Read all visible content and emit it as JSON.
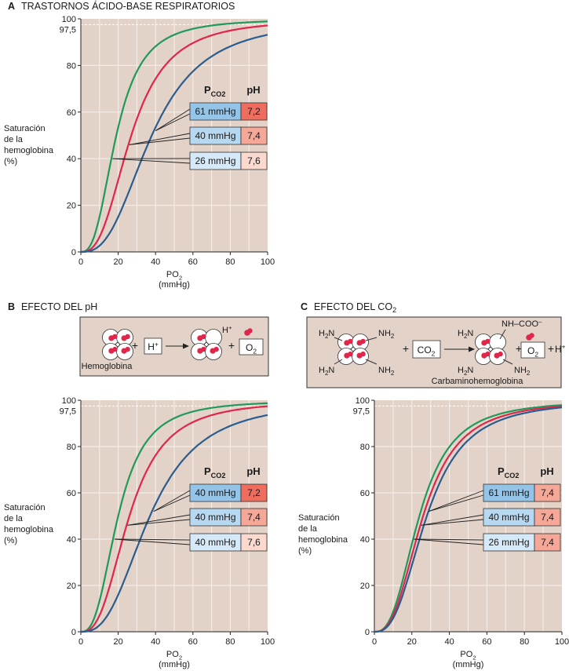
{
  "colors": {
    "plot_bg": "#e3d2c8",
    "diagram_bg": "#e3d2c8",
    "grid": "#f3ece7",
    "green": "#1f9a5a",
    "red": "#e0264a",
    "blue": "#2a5d8f",
    "pco2_dark": "#94c4e8",
    "pco2_mid": "#b7d8f1",
    "pco2_light": "#d6e9f8",
    "ph_dark": "#ee6d5e",
    "ph_mid": "#f5a897",
    "ph_light": "#fbd9cf",
    "heme": "#e0264a"
  },
  "panels": [
    {
      "letter": "A",
      "title": "TRASTORNOS ÁCIDO-BASE RESPIRATORIOS",
      "legend_header_pco2": "P",
      "legend_header_pco2_sub": "CO2",
      "legend_header_ph": "pH",
      "legend_rows": [
        {
          "pco2": "61 mmHg",
          "ph": "7,2"
        },
        {
          "pco2": "40 mmHg",
          "ph": "7,4"
        },
        {
          "pco2": "26 mmHg",
          "ph": "7,6"
        }
      ]
    },
    {
      "letter": "B",
      "title": "EFECTO DEL pH",
      "legend_header_pco2": "P",
      "legend_header_pco2_sub": "CO2",
      "legend_header_ph": "pH",
      "legend_rows": [
        {
          "pco2": "40 mmHg",
          "ph": "7,2"
        },
        {
          "pco2": "40 mmHg",
          "ph": "7,4"
        },
        {
          "pco2": "40 mmHg",
          "ph": "7,6"
        }
      ]
    },
    {
      "letter": "C",
      "title": "EFECTO DEL CO",
      "title_sub": "2",
      "legend_header_pco2": "P",
      "legend_header_pco2_sub": "CO2",
      "legend_header_ph": "pH",
      "legend_rows": [
        {
          "pco2": "61 mmHg",
          "ph": "7,4"
        },
        {
          "pco2": "40 mmHg",
          "ph": "7,4"
        },
        {
          "pco2": "26 mmHg",
          "ph": "7,4"
        }
      ]
    }
  ],
  "diagram_b": {
    "plus1": "+",
    "h_ion": "H",
    "h_ion_sup": "+",
    "plus2": "+",
    "o2": "O",
    "o2_sub": "2",
    "bound_h": "H",
    "bound_h_sup": "+",
    "hemoglobina_label": "Hemoglobina"
  },
  "diagram_c": {
    "h2n_tl": "H2N",
    "nh2_tr": "NH2",
    "h2n_bl": "H2N",
    "nh2_br": "NH2",
    "plus1": "+",
    "co2": "CO",
    "co2_sub": "2",
    "h2n_tl2": "H2N",
    "nh_coo": "NH–COO",
    "nh_coo_sup": "–",
    "h2n_bl2": "H2N",
    "nh2_br2": "NH2",
    "plus2": "+",
    "o2": "O",
    "o2_sub": "2",
    "plus3": "+",
    "h_ion": "H",
    "h_ion_sup": "+",
    "carbamino_label": "Carbaminohemoglobina"
  },
  "chart_data": [
    {
      "type": "line",
      "panel": "A",
      "title": "TRASTORNOS ÁCIDO-BASE RESPIRATORIOS",
      "xlabel": "PO2 (mmHg)",
      "xlabel_main": "PO",
      "xlabel_sub": "2",
      "xlabel_unit": "(mmHg)",
      "ylabel_lines": [
        "Saturación",
        "de la",
        "hemoglobina",
        "(%)"
      ],
      "xlim": [
        0,
        100
      ],
      "ylim": [
        0,
        100
      ],
      "xticks": [
        "0",
        "20",
        "40",
        "60",
        "80",
        "100"
      ],
      "yticks": [
        "0",
        "20",
        "40",
        "60",
        "80",
        "100"
      ],
      "ref_line": {
        "y": 97.5,
        "label": "97,5"
      },
      "grid": true,
      "series": [
        {
          "color": "green",
          "p50": 19,
          "n": 2.7,
          "points": [
            [
              0,
              0
            ],
            [
              10,
              24
            ],
            [
              20,
              56
            ],
            [
              30,
              79
            ],
            [
              40,
              90
            ],
            [
              60,
              97
            ],
            [
              80,
              99
            ],
            [
              100,
              99.5
            ]
          ]
        },
        {
          "color": "red",
          "p50": 27,
          "n": 2.7,
          "points": [
            [
              0,
              0
            ],
            [
              10,
              6
            ],
            [
              20,
              31
            ],
            [
              30,
              57
            ],
            [
              40,
              74
            ],
            [
              60,
              90
            ],
            [
              80,
              96
            ],
            [
              100,
              98
            ]
          ]
        },
        {
          "color": "blue",
          "p50": 38,
          "n": 2.7,
          "points": [
            [
              0,
              0
            ],
            [
              10,
              3
            ],
            [
              20,
              12
            ],
            [
              30,
              30
            ],
            [
              40,
              55
            ],
            [
              60,
              77
            ],
            [
              80,
              88
            ],
            [
              100,
              93
            ]
          ]
        }
      ]
    },
    {
      "type": "line",
      "panel": "B",
      "title": "EFECTO DEL pH",
      "xlabel": "PO2 (mmHg)",
      "xlabel_main": "PO",
      "xlabel_sub": "2",
      "xlabel_unit": "(mmHg)",
      "ylabel_lines": [
        "Saturación",
        "de la",
        "hemoglobina",
        "(%)"
      ],
      "xlim": [
        0,
        100
      ],
      "ylim": [
        0,
        100
      ],
      "xticks": [
        "0",
        "20",
        "40",
        "60",
        "80",
        "100"
      ],
      "yticks": [
        "0",
        "20",
        "40",
        "60",
        "80",
        "100"
      ],
      "ref_line": {
        "y": 97.5,
        "label": "97,5"
      },
      "grid": true,
      "series": [
        {
          "color": "green",
          "p50": 20,
          "n": 2.7,
          "points": [
            [
              0,
              0
            ],
            [
              10,
              14
            ],
            [
              20,
              50
            ],
            [
              30,
              75
            ],
            [
              40,
              88
            ],
            [
              60,
              96
            ],
            [
              80,
              98.5
            ],
            [
              100,
              99.5
            ]
          ]
        },
        {
          "color": "red",
          "p50": 26,
          "n": 2.7,
          "points": [
            [
              0,
              0
            ],
            [
              10,
              7
            ],
            [
              20,
              32
            ],
            [
              30,
              58
            ],
            [
              40,
              76
            ],
            [
              60,
              91
            ],
            [
              80,
              96
            ],
            [
              100,
              98
            ]
          ]
        },
        {
          "color": "blue",
          "p50": 37,
          "n": 2.7,
          "points": [
            [
              0,
              0
            ],
            [
              10,
              3
            ],
            [
              20,
              13
            ],
            [
              30,
              33
            ],
            [
              40,
              56
            ],
            [
              60,
              79
            ],
            [
              80,
              89
            ],
            [
              100,
              93
            ]
          ]
        }
      ]
    },
    {
      "type": "line",
      "panel": "C",
      "title": "EFECTO DEL CO2",
      "xlabel": "PO2 (mmHg)",
      "xlabel_main": "PO",
      "xlabel_sub": "2",
      "xlabel_unit": "(mmHg)",
      "ylabel_lines": [
        "Saturación",
        "de la",
        "hemoglobina",
        "(%)"
      ],
      "xlim": [
        0,
        100
      ],
      "ylim": [
        0,
        100
      ],
      "xticks": [
        "0",
        "20",
        "40",
        "60",
        "80",
        "100"
      ],
      "yticks": [
        "0",
        "20",
        "40",
        "60",
        "80",
        "100"
      ],
      "ref_line": {
        "y": 97.5,
        "label": "97,5"
      },
      "grid": true,
      "series": [
        {
          "color": "green",
          "p50": 24,
          "n": 2.7,
          "points": [
            [
              0,
              0
            ],
            [
              10,
              8
            ],
            [
              20,
              38
            ],
            [
              30,
              65
            ],
            [
              40,
              81
            ],
            [
              60,
              94
            ],
            [
              80,
              97
            ],
            [
              100,
              98
            ]
          ]
        },
        {
          "color": "red",
          "p50": 26,
          "n": 2.7,
          "points": [
            [
              0,
              0
            ],
            [
              10,
              7
            ],
            [
              20,
              33
            ],
            [
              30,
              60
            ],
            [
              40,
              78
            ],
            [
              60,
              92
            ],
            [
              80,
              96.5
            ],
            [
              100,
              97.5
            ]
          ]
        },
        {
          "color": "blue",
          "p50": 28,
          "n": 2.7,
          "points": [
            [
              0,
              0
            ],
            [
              10,
              5
            ],
            [
              20,
              28
            ],
            [
              30,
              55
            ],
            [
              40,
              75
            ],
            [
              60,
              90
            ],
            [
              80,
              95
            ],
            [
              100,
              96.5
            ]
          ]
        }
      ]
    }
  ]
}
